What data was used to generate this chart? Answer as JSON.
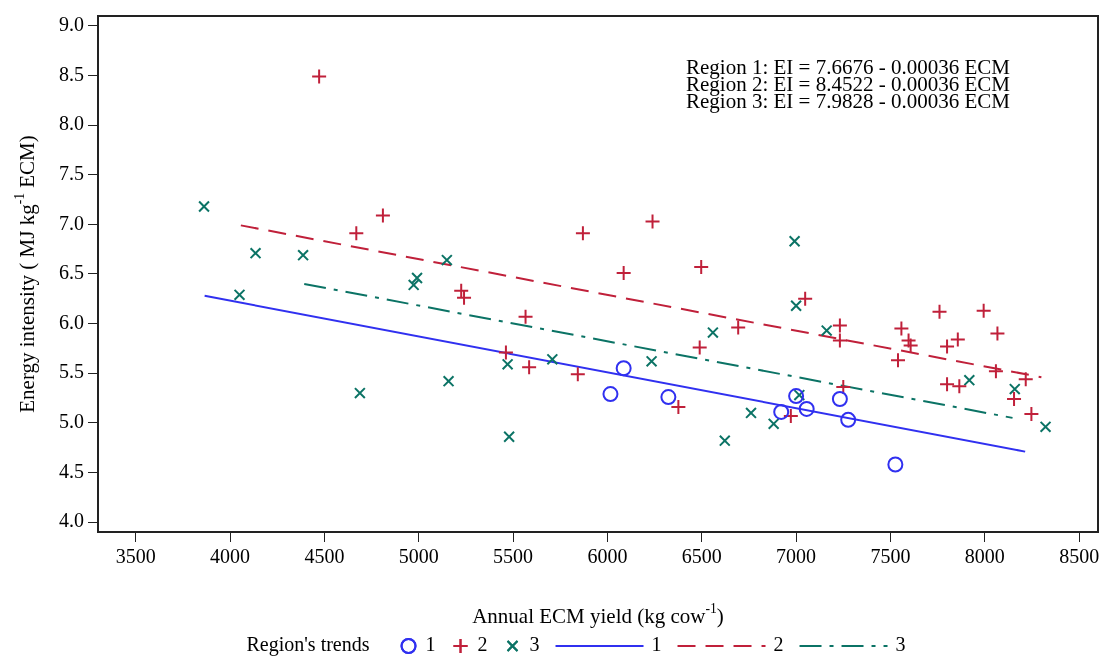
{
  "chart_data": {
    "type": "scatter",
    "xlabel": "Annual ECM yield (kg cow$^{-1}$)",
    "ylabel": "Energy intensity ( MJ kg$^{-1}$ ECM)",
    "legend_title": "Region's trends",
    "legend": "bottom",
    "grid": false,
    "xlim": [
      3300,
      8600
    ],
    "xticks": [
      3500,
      4000,
      4500,
      5000,
      5500,
      6000,
      6500,
      7000,
      7500,
      8000,
      8500
    ],
    "ylim": [
      3.9,
      9.1
    ],
    "yticks": [
      {
        "value": 4,
        "label": "4.0"
      },
      {
        "value": 4.5,
        "label": "4.5"
      },
      {
        "value": 5,
        "label": "5.0"
      },
      {
        "value": 5.5,
        "label": "5.5"
      },
      {
        "value": 6,
        "label": "6.0"
      },
      {
        "value": 6.5,
        "label": "6.5"
      },
      {
        "value": 7,
        "label": "7.0"
      },
      {
        "value": 7.5,
        "label": "7.5"
      },
      {
        "value": 8,
        "label": "8.0"
      },
      {
        "value": 8.5,
        "label": "8.5"
      },
      {
        "value": 9,
        "label": "9.0"
      }
    ],
    "annotations": [
      "Region 1: EI = 7.6676 - 0.00036 ECM",
      "Region 2: EI = 8.4522 - 0.00036 ECM",
      "Region 3: EI = 7.9828 - 0.00036 ECM"
    ],
    "series": [
      {
        "name": "1",
        "type": "scatter",
        "marker": "circle",
        "color": "#3030f0",
        "x": [
          6016,
          6086,
          6323,
          6921,
          7000,
          7056,
          7232,
          7276,
          7526
        ],
        "values": [
          5.29,
          5.55,
          5.26,
          5.11,
          5.27,
          5.14,
          5.24,
          5.03,
          4.58
        ]
      },
      {
        "name": "2",
        "type": "scatter",
        "marker": "cross",
        "color": "#c0203a",
        "x": [
          4472,
          4669,
          4810,
          5225,
          5240,
          5870,
          6239,
          6086,
          6497,
          5566,
          5462,
          5585,
          5843,
          6693,
          6489,
          6376,
          7048,
          7232,
          7232,
          7250,
          6972,
          7760,
          7994,
          7558,
          7596,
          7607,
          7540,
          7800,
          7857,
          8067,
          7800,
          7865,
          8059,
          8217,
          8155,
          8247
        ],
        "values": [
          8.49,
          6.91,
          7.09,
          6.33,
          6.26,
          6.91,
          7.03,
          6.51,
          6.57,
          6.07,
          5.71,
          5.56,
          5.49,
          5.96,
          5.76,
          5.16,
          6.25,
          5.98,
          5.83,
          5.36,
          5.07,
          6.12,
          6.13,
          5.95,
          5.83,
          5.78,
          5.63,
          5.77,
          5.84,
          5.9,
          5.39,
          5.37,
          5.52,
          5.44,
          5.24,
          5.09
        ]
      },
      {
        "name": "3",
        "type": "scatter",
        "marker": "x",
        "color": "#0b7365",
        "x": [
          3862,
          4135,
          4387,
          4050,
          4991,
          4973,
          5149,
          4688,
          5158,
          5471,
          5479,
          5708,
          6234,
          6559,
          6622,
          6761,
          6881,
          6992,
          7000,
          7162,
          7017,
          7918,
          8159,
          8322
        ],
        "values": [
          7.18,
          6.71,
          6.69,
          6.29,
          6.46,
          6.39,
          6.64,
          5.3,
          5.42,
          5.59,
          4.86,
          5.64,
          5.62,
          5.91,
          4.82,
          5.1,
          4.99,
          6.83,
          6.18,
          5.93,
          5.28,
          5.43,
          5.34,
          4.96
        ]
      },
      {
        "name": "1",
        "type": "line",
        "line_style": "solid",
        "color": "#3030f0",
        "x": [
          3865,
          8214
        ],
        "values": [
          6.28,
          4.71
        ]
      },
      {
        "name": "2",
        "type": "line",
        "line_style": "dashed",
        "color": "#c0203a",
        "x": [
          4057,
          8300
        ],
        "values": [
          6.99,
          5.46
        ]
      },
      {
        "name": "3",
        "type": "line",
        "line_style": "dashdot",
        "color": "#0b7365",
        "x": [
          4393,
          8147
        ],
        "values": [
          6.4,
          5.05
        ]
      }
    ]
  }
}
